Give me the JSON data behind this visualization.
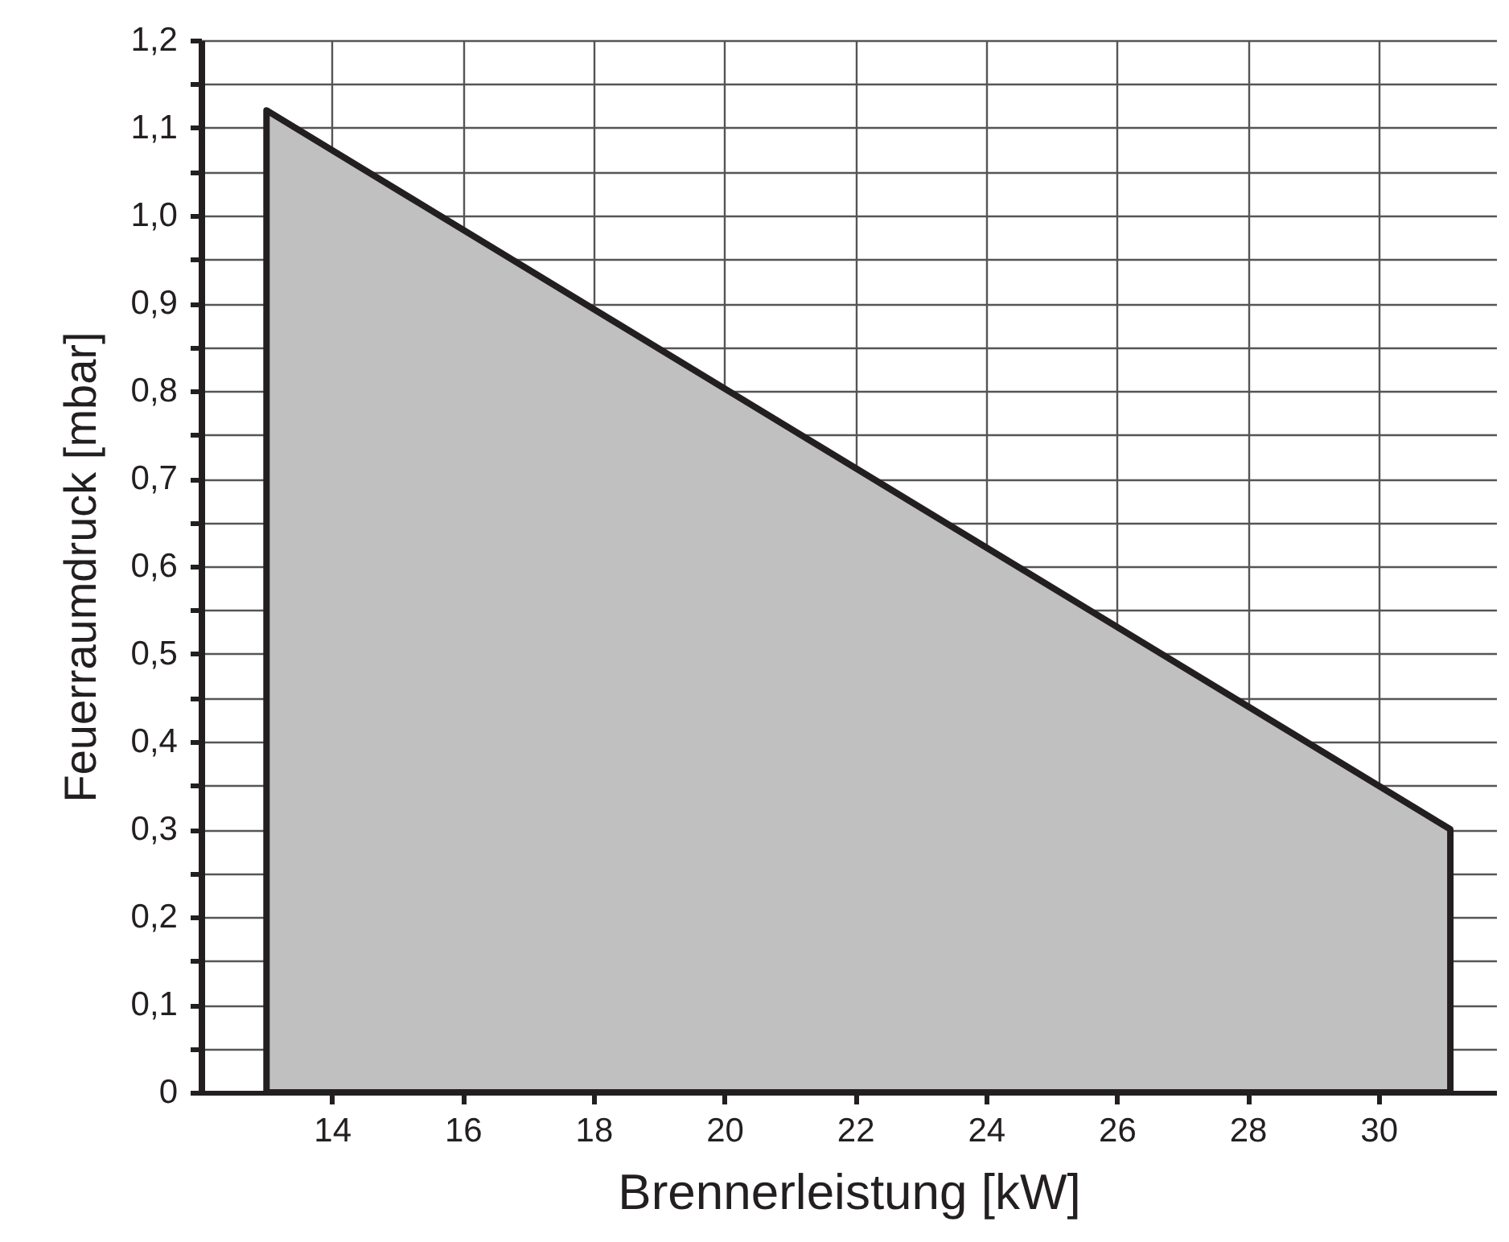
{
  "chart_data": {
    "type": "area",
    "xlabel": "Brennerleistung [kW]",
    "ylabel": "Feuerraumdruck [mbar]",
    "x": [
      13,
      31.1
    ],
    "series": [
      {
        "color": "#c0c0c0",
        "values": [
          1.12,
          0.3
        ]
      }
    ],
    "xlim": [
      12,
      31.8
    ],
    "xticks": [
      14,
      16,
      18,
      20,
      22,
      24,
      26,
      28,
      30
    ],
    "ylim": [
      0,
      1.2
    ],
    "yticks": [
      {
        "value": 0,
        "label": "0"
      },
      {
        "value": 0.05,
        "label": null
      },
      {
        "value": 0.1,
        "label": "0,1"
      },
      {
        "value": 0.15,
        "label": null
      },
      {
        "value": 0.2,
        "label": "0,2"
      },
      {
        "value": 0.25,
        "label": null
      },
      {
        "value": 0.3,
        "label": "0,3"
      },
      {
        "value": 0.35,
        "label": null
      },
      {
        "value": 0.4,
        "label": "0,4"
      },
      {
        "value": 0.45,
        "label": null
      },
      {
        "value": 0.5,
        "label": "0,5"
      },
      {
        "value": 0.55,
        "label": null
      },
      {
        "value": 0.6,
        "label": "0,6"
      },
      {
        "value": 0.65,
        "label": null
      },
      {
        "value": 0.7,
        "label": "0,7"
      },
      {
        "value": 0.75,
        "label": null
      },
      {
        "value": 0.8,
        "label": "0,8"
      },
      {
        "value": 0.85,
        "label": null
      },
      {
        "value": 0.9,
        "label": "0,9"
      },
      {
        "value": 0.95,
        "label": null
      },
      {
        "value": 1.0,
        "label": "1,0"
      },
      {
        "value": 1.05,
        "label": null
      },
      {
        "value": 1.1,
        "label": "1,1"
      },
      {
        "value": 1.15,
        "label": null
      },
      {
        "value": 1.2,
        "label": "1,2"
      }
    ],
    "grid": true
  }
}
